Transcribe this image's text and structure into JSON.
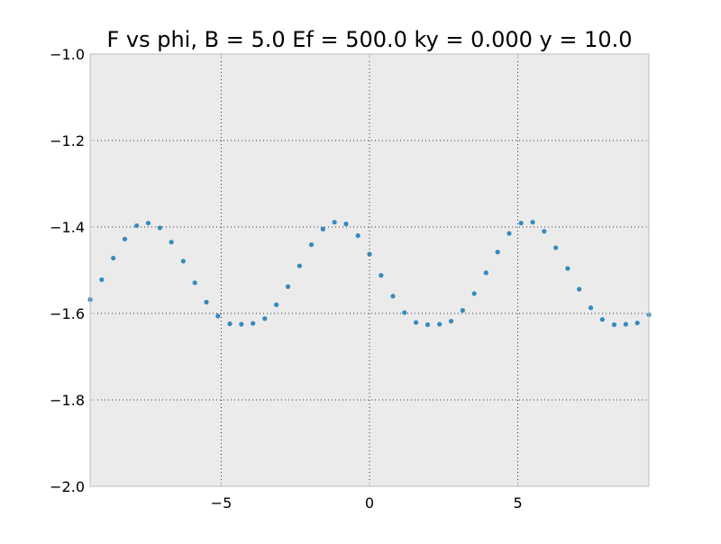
{
  "chart_data": {
    "type": "scatter",
    "title": "F vs phi, B = 5.0 Ef = 500.0 ky = 0.000 y = 10.0",
    "xlabel": "",
    "ylabel": "",
    "xlim": [
      -9.42,
      9.42
    ],
    "ylim": [
      -2.0,
      -1.0
    ],
    "grid": true,
    "legend": "none",
    "x_ticks": [
      -5,
      0,
      5
    ],
    "x_tick_labels": [
      "−5",
      "0",
      "5"
    ],
    "y_ticks": [
      -1.0,
      -1.2,
      -1.4,
      -1.6,
      -1.8,
      -2.0
    ],
    "y_tick_labels": [
      "−1.0",
      "−1.2",
      "−1.4",
      "−1.6",
      "−1.8",
      "−2.0"
    ],
    "colors": {
      "marker": "#348abd",
      "axes_bg": "#ebebeb",
      "axes_edge": "#bcbcbc"
    },
    "series": [
      {
        "x": [
          -9.42,
          -9.03,
          -8.64,
          -8.25,
          -7.85,
          -7.46,
          -7.07,
          -6.68,
          -6.28,
          -5.89,
          -5.5,
          -5.11,
          -4.71,
          -4.32,
          -3.93,
          -3.53,
          -3.14,
          -2.75,
          -2.36,
          -1.96,
          -1.57,
          -1.18,
          -0.79,
          -0.39,
          0.0,
          0.39,
          0.79,
          1.18,
          1.57,
          1.96,
          2.36,
          2.75,
          3.14,
          3.53,
          3.93,
          4.32,
          4.71,
          5.11,
          5.5,
          5.89,
          6.28,
          6.68,
          7.07,
          7.46,
          7.85,
          8.25,
          8.64,
          9.03,
          9.42
        ],
        "y": [
          -1.568,
          -1.522,
          -1.472,
          -1.428,
          -1.397,
          -1.391,
          -1.402,
          -1.435,
          -1.479,
          -1.529,
          -1.574,
          -1.606,
          -1.624,
          -1.625,
          -1.623,
          -1.612,
          -1.58,
          -1.538,
          -1.49,
          -1.441,
          -1.405,
          -1.389,
          -1.393,
          -1.42,
          -1.463,
          -1.512,
          -1.56,
          -1.598,
          -1.621,
          -1.626,
          -1.625,
          -1.618,
          -1.593,
          -1.554,
          -1.506,
          -1.458,
          -1.415,
          -1.391,
          -1.389,
          -1.41,
          -1.448,
          -1.496,
          -1.544,
          -1.587,
          -1.614,
          -1.626,
          -1.625,
          -1.622,
          -1.603
        ]
      }
    ]
  }
}
